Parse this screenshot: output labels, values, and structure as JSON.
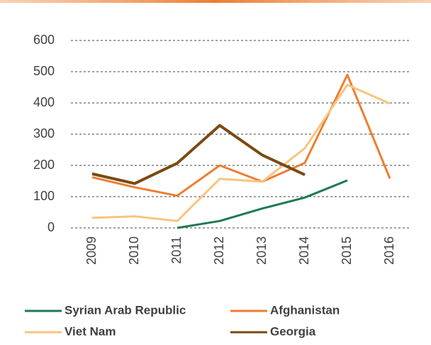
{
  "chart_data": {
    "type": "line",
    "categories": [
      "2009",
      "2010",
      "2011",
      "2012",
      "2013",
      "2014",
      "2015",
      "2016"
    ],
    "series": [
      {
        "name": "Syrian Arab Republic",
        "color": "#1e7a50",
        "values": [
          null,
          null,
          0,
          22,
          62,
          97,
          152,
          null
        ]
      },
      {
        "name": "Afghanistan",
        "color": "#ed7d31",
        "values": [
          162,
          130,
          103,
          200,
          148,
          208,
          490,
          158
        ]
      },
      {
        "name": "Viet Nam",
        "color": "#f8c47f",
        "values": [
          32,
          37,
          22,
          157,
          148,
          255,
          458,
          398
        ]
      },
      {
        "name": "Georgia",
        "color": "#7a4a12",
        "values": [
          173,
          142,
          207,
          328,
          233,
          170,
          null,
          null
        ]
      }
    ],
    "ylim": [
      0,
      600
    ],
    "yticks": [
      0,
      100,
      200,
      300,
      400,
      500,
      600
    ],
    "grid": true,
    "legend": "bottom"
  }
}
